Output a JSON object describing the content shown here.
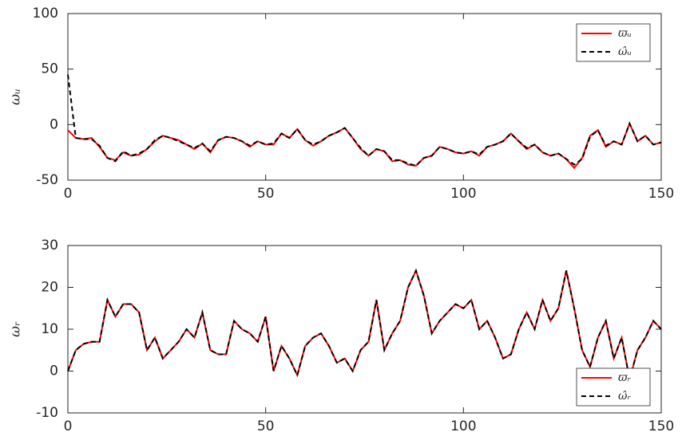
{
  "chart_data": [
    {
      "type": "line",
      "ylabel": "ωᵤ",
      "legend": "northeast",
      "x": [
        0,
        2,
        4,
        6,
        8,
        10,
        12,
        14,
        16,
        18,
        20,
        22,
        24,
        26,
        28,
        30,
        32,
        34,
        36,
        38,
        40,
        42,
        44,
        46,
        48,
        50,
        52,
        54,
        56,
        58,
        60,
        62,
        64,
        66,
        68,
        70,
        72,
        74,
        76,
        78,
        80,
        82,
        84,
        86,
        88,
        90,
        92,
        94,
        96,
        98,
        100,
        102,
        104,
        106,
        108,
        110,
        112,
        114,
        116,
        118,
        120,
        122,
        124,
        126,
        128,
        130,
        132,
        134,
        136,
        138,
        140,
        142,
        144,
        146,
        148,
        150
      ],
      "xlim": [
        0,
        150
      ],
      "xticks": [
        0,
        50,
        100,
        150
      ],
      "ylim": [
        -50,
        100
      ],
      "yticks": [
        -50,
        0,
        50,
        100
      ],
      "series": [
        {
          "name": "ϖᵤ",
          "color": "#ff0000",
          "linestyle": "solid",
          "values": [
            -5,
            -12,
            -13,
            -12,
            -20,
            -30,
            -32,
            -25,
            -28,
            -27,
            -22,
            -15,
            -10,
            -12,
            -14,
            -18,
            -22,
            -17,
            -25,
            -14,
            -11,
            -12,
            -15,
            -20,
            -15,
            -18,
            -18,
            -8,
            -12,
            -4,
            -14,
            -19,
            -15,
            -10,
            -7,
            -3,
            -12,
            -22,
            -28,
            -22,
            -24,
            -33,
            -32,
            -36,
            -37,
            -30,
            -28,
            -20,
            -22,
            -25,
            -26,
            -24,
            -28,
            -20,
            -18,
            -15,
            -8,
            -15,
            -22,
            -18,
            -25,
            -28,
            -26,
            -31,
            -39,
            -30,
            -10,
            -5,
            -20,
            -15,
            -18,
            1,
            -15,
            -10,
            -18,
            -16
          ]
        },
        {
          "name": "ω̂ᵤ",
          "color": "#000000",
          "linestyle": "dashed",
          "values": [
            45,
            -12,
            -13,
            -13,
            -19,
            -30,
            -33,
            -24,
            -28,
            -26,
            -22,
            -14,
            -10,
            -12,
            -15,
            -18,
            -21,
            -17,
            -24,
            -14,
            -11,
            -12,
            -15,
            -19,
            -15,
            -18,
            -17,
            -8,
            -12,
            -4,
            -14,
            -18,
            -15,
            -10,
            -7,
            -3,
            -12,
            -21,
            -28,
            -22,
            -24,
            -32,
            -32,
            -35,
            -37,
            -30,
            -28,
            -20,
            -22,
            -25,
            -26,
            -24,
            -27,
            -20,
            -18,
            -15,
            -8,
            -15,
            -21,
            -18,
            -25,
            -28,
            -26,
            -31,
            -36,
            -31,
            -11,
            -5,
            -19,
            -15,
            -18,
            1,
            -15,
            -10,
            -18,
            -16
          ]
        }
      ]
    },
    {
      "type": "line",
      "ylabel": "ωᵣ",
      "legend": "southeast",
      "x": [
        0,
        2,
        4,
        6,
        8,
        10,
        12,
        14,
        16,
        18,
        20,
        22,
        24,
        26,
        28,
        30,
        32,
        34,
        36,
        38,
        40,
        42,
        44,
        46,
        48,
        50,
        52,
        54,
        56,
        58,
        60,
        62,
        64,
        66,
        68,
        70,
        72,
        74,
        76,
        78,
        80,
        82,
        84,
        86,
        88,
        90,
        92,
        94,
        96,
        98,
        100,
        102,
        104,
        106,
        108,
        110,
        112,
        114,
        116,
        118,
        120,
        122,
        124,
        126,
        128,
        130,
        132,
        134,
        136,
        138,
        140,
        142,
        144,
        146,
        148,
        150
      ],
      "xlim": [
        0,
        150
      ],
      "xticks": [
        0,
        50,
        100,
        150
      ],
      "ylim": [
        -10,
        30
      ],
      "yticks": [
        -10,
        0,
        10,
        20,
        30
      ],
      "series": [
        {
          "name": "ϖᵣ",
          "color": "#ff0000",
          "linestyle": "solid",
          "values": [
            0,
            5,
            6.5,
            7,
            7,
            17,
            13,
            16,
            16,
            14,
            5,
            8,
            3,
            5,
            7,
            10,
            8,
            14,
            5,
            4,
            4,
            12,
            10,
            9,
            7,
            13,
            0,
            6,
            3,
            -1,
            6,
            8,
            9,
            6,
            2,
            3,
            0,
            5,
            7,
            17,
            5,
            9,
            12,
            20,
            24,
            18,
            9,
            12,
            14,
            16,
            15,
            17,
            10,
            12,
            8,
            3,
            4,
            10,
            14,
            10,
            17,
            12,
            15,
            24,
            15,
            5,
            1,
            8,
            12,
            3,
            8,
            -2,
            5,
            8,
            12,
            10
          ]
        },
        {
          "name": "ω̂ᵣ",
          "color": "#000000",
          "linestyle": "dashed",
          "values": [
            0,
            5,
            6.5,
            7,
            7,
            17,
            13,
            16,
            16,
            14,
            5,
            8,
            3,
            5,
            7,
            10,
            8,
            14,
            5,
            4,
            4,
            12,
            10,
            9,
            7,
            13,
            0,
            6,
            3,
            -1,
            6,
            8,
            9,
            6,
            2,
            3,
            0,
            5,
            7,
            17,
            5,
            9,
            12,
            20,
            24,
            18,
            9,
            12,
            14,
            16,
            15,
            17,
            10,
            12,
            8,
            3,
            4,
            10,
            14,
            10,
            17,
            12,
            15,
            24,
            15,
            5,
            1,
            8,
            12,
            3,
            8,
            -2,
            5,
            8,
            12,
            10
          ]
        }
      ]
    }
  ]
}
